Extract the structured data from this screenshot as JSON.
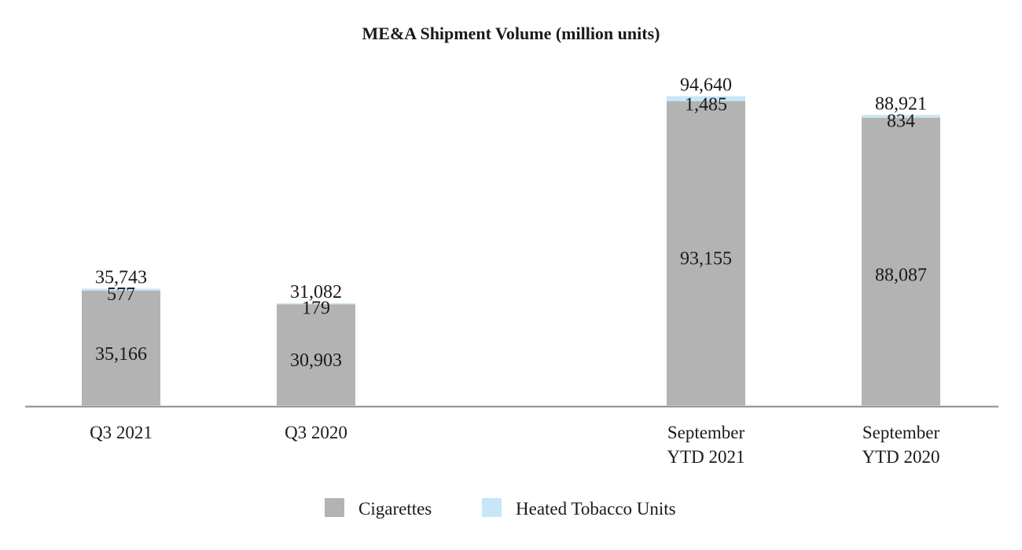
{
  "chart_data": {
    "type": "bar",
    "stacked": true,
    "title": "ME&A Shipment Volume (million units)",
    "xlabel": "",
    "ylabel": "",
    "ylim": [
      0,
      100000
    ],
    "grid": false,
    "legend_position": "bottom-center",
    "categories": [
      [
        "Q3 2021"
      ],
      [
        "Q3 2020"
      ],
      [
        "September",
        "YTD 2021"
      ],
      [
        "September",
        "YTD 2020"
      ]
    ],
    "category_gap_after": [
      false,
      true,
      false,
      false
    ],
    "series": [
      {
        "name": "Cigarettes",
        "color": "#b3b3b3",
        "values": [
          35166,
          30903,
          93155,
          88087
        ],
        "labels": [
          "35,166",
          "30,903",
          "93,155",
          "88,087"
        ]
      },
      {
        "name": "Heated Tobacco Units",
        "color": "#c6e6fa",
        "values": [
          577,
          179,
          1485,
          834
        ],
        "labels": [
          "577",
          "179",
          "1,485",
          "834"
        ]
      }
    ],
    "totals": [
      35743,
      31082,
      94640,
      88921
    ],
    "total_labels": [
      "35,743",
      "31,082",
      "94,640",
      "88,921"
    ]
  }
}
